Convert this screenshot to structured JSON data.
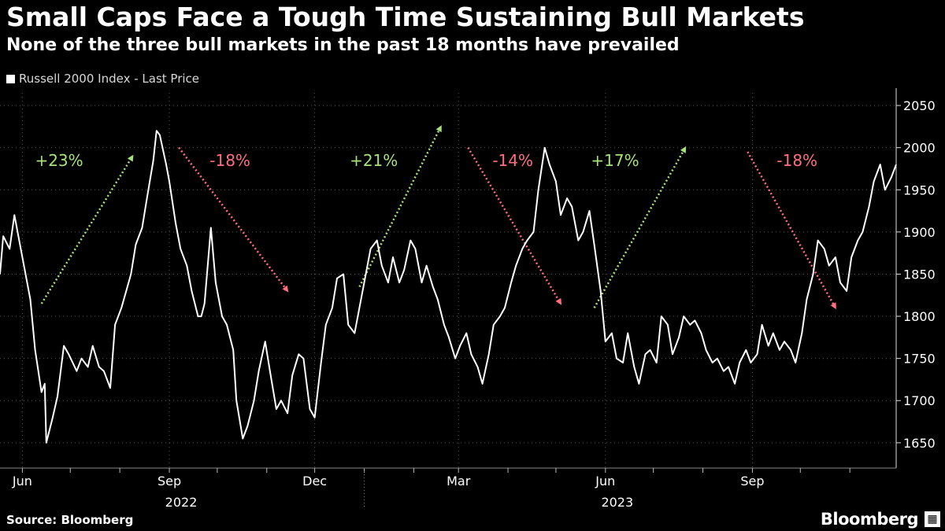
{
  "title": "Small Caps Face a Tough Time Sustaining Bull Markets",
  "subtitle": "None of the three bull markets in the past 18 months have prevailed",
  "legend_label": "Russell 2000 Index - Last Price",
  "source": "Source: Bloomberg",
  "brand": "Bloomberg",
  "brand_icon": "terminal-icon",
  "colors": {
    "background": "#000000",
    "line": "#ffffff",
    "gain": "#a6e27a",
    "loss": "#ff6f7f",
    "grid": "#555555"
  },
  "chart_data": {
    "type": "line",
    "xlabel": "",
    "ylabel": "",
    "ylim": [
      1620,
      2065
    ],
    "xlim": [
      "2022-05-18",
      "2023-11-30"
    ],
    "yticks": [
      1650,
      1700,
      1750,
      1800,
      1850,
      1900,
      1950,
      2000,
      2050
    ],
    "xticks": [
      {
        "date": "2022-06-01",
        "label": "Jun",
        "year": ""
      },
      {
        "date": "2022-09-01",
        "label": "Sep",
        "year": "2022"
      },
      {
        "date": "2022-12-01",
        "label": "Dec",
        "year": ""
      },
      {
        "date": "2023-03-01",
        "label": "Mar",
        "year": ""
      },
      {
        "date": "2023-06-01",
        "label": "Jun",
        "year": "2023"
      },
      {
        "date": "2023-09-01",
        "label": "Sep",
        "year": ""
      }
    ],
    "year_dividers": [
      "2023-01-01"
    ],
    "legend_position": "top-left",
    "grid": true,
    "series": [
      {
        "name": "Russell 2000 Index - Last Price",
        "points": [
          [
            "2022-05-18",
            1850
          ],
          [
            "2022-05-20",
            1895
          ],
          [
            "2022-05-24",
            1880
          ],
          [
            "2022-05-27",
            1920
          ],
          [
            "2022-06-01",
            1870
          ],
          [
            "2022-06-06",
            1820
          ],
          [
            "2022-06-09",
            1760
          ],
          [
            "2022-06-13",
            1710
          ],
          [
            "2022-06-15",
            1720
          ],
          [
            "2022-06-16",
            1650
          ],
          [
            "2022-06-20",
            1680
          ],
          [
            "2022-06-23",
            1705
          ],
          [
            "2022-06-27",
            1765
          ],
          [
            "2022-06-30",
            1755
          ],
          [
            "2022-07-05",
            1735
          ],
          [
            "2022-07-08",
            1750
          ],
          [
            "2022-07-12",
            1740
          ],
          [
            "2022-07-15",
            1765
          ],
          [
            "2022-07-19",
            1740
          ],
          [
            "2022-07-22",
            1735
          ],
          [
            "2022-07-26",
            1715
          ],
          [
            "2022-07-29",
            1790
          ],
          [
            "2022-08-02",
            1810
          ],
          [
            "2022-08-05",
            1830
          ],
          [
            "2022-08-08",
            1850
          ],
          [
            "2022-08-11",
            1885
          ],
          [
            "2022-08-15",
            1905
          ],
          [
            "2022-08-18",
            1940
          ],
          [
            "2022-08-22",
            1985
          ],
          [
            "2022-08-24",
            2020
          ],
          [
            "2022-08-26",
            2015
          ],
          [
            "2022-08-30",
            1980
          ],
          [
            "2022-09-01",
            1960
          ],
          [
            "2022-09-05",
            1910
          ],
          [
            "2022-09-08",
            1880
          ],
          [
            "2022-09-12",
            1860
          ],
          [
            "2022-09-15",
            1830
          ],
          [
            "2022-09-19",
            1800
          ],
          [
            "2022-09-21",
            1800
          ],
          [
            "2022-09-23",
            1815
          ],
          [
            "2022-09-27",
            1905
          ],
          [
            "2022-09-30",
            1840
          ],
          [
            "2022-10-04",
            1800
          ],
          [
            "2022-10-07",
            1790
          ],
          [
            "2022-10-11",
            1760
          ],
          [
            "2022-10-13",
            1700
          ],
          [
            "2022-10-17",
            1655
          ],
          [
            "2022-10-20",
            1670
          ],
          [
            "2022-10-24",
            1700
          ],
          [
            "2022-10-27",
            1735
          ],
          [
            "2022-10-31",
            1770
          ],
          [
            "2022-11-03",
            1735
          ],
          [
            "2022-11-07",
            1690
          ],
          [
            "2022-11-10",
            1700
          ],
          [
            "2022-11-14",
            1685
          ],
          [
            "2022-11-17",
            1730
          ],
          [
            "2022-11-21",
            1755
          ],
          [
            "2022-11-24",
            1750
          ],
          [
            "2022-11-28",
            1690
          ],
          [
            "2022-12-01",
            1680
          ],
          [
            "2022-12-05",
            1745
          ],
          [
            "2022-12-08",
            1790
          ],
          [
            "2022-12-12",
            1810
          ],
          [
            "2022-12-15",
            1845
          ],
          [
            "2022-12-19",
            1850
          ],
          [
            "2022-12-22",
            1790
          ],
          [
            "2022-12-26",
            1780
          ],
          [
            "2022-12-29",
            1810
          ],
          [
            "2023-01-02",
            1850
          ],
          [
            "2023-01-05",
            1880
          ],
          [
            "2023-01-09",
            1890
          ],
          [
            "2023-01-12",
            1860
          ],
          [
            "2023-01-16",
            1840
          ],
          [
            "2023-01-19",
            1870
          ],
          [
            "2023-01-23",
            1840
          ],
          [
            "2023-01-26",
            1855
          ],
          [
            "2023-01-30",
            1890
          ],
          [
            "2023-02-02",
            1880
          ],
          [
            "2023-02-06",
            1840
          ],
          [
            "2023-02-09",
            1860
          ],
          [
            "2023-02-13",
            1835
          ],
          [
            "2023-02-16",
            1820
          ],
          [
            "2023-02-20",
            1790
          ],
          [
            "2023-02-23",
            1775
          ],
          [
            "2023-02-27",
            1750
          ],
          [
            "2023-03-02",
            1765
          ],
          [
            "2023-03-06",
            1780
          ],
          [
            "2023-03-09",
            1755
          ],
          [
            "2023-03-13",
            1740
          ],
          [
            "2023-03-16",
            1720
          ],
          [
            "2023-03-20",
            1755
          ],
          [
            "2023-03-23",
            1790
          ],
          [
            "2023-03-27",
            1800
          ],
          [
            "2023-03-30",
            1810
          ],
          [
            "2023-04-03",
            1840
          ],
          [
            "2023-04-06",
            1860
          ],
          [
            "2023-04-10",
            1880
          ],
          [
            "2023-04-13",
            1890
          ],
          [
            "2023-04-17",
            1900
          ],
          [
            "2023-04-20",
            1950
          ],
          [
            "2023-04-24",
            2000
          ],
          [
            "2023-04-27",
            1980
          ],
          [
            "2023-05-01",
            1960
          ],
          [
            "2023-05-04",
            1920
          ],
          [
            "2023-05-08",
            1940
          ],
          [
            "2023-05-11",
            1930
          ],
          [
            "2023-05-15",
            1890
          ],
          [
            "2023-05-18",
            1900
          ],
          [
            "2023-05-22",
            1925
          ],
          [
            "2023-05-25",
            1885
          ],
          [
            "2023-05-29",
            1830
          ],
          [
            "2023-06-01",
            1770
          ],
          [
            "2023-06-05",
            1780
          ],
          [
            "2023-06-08",
            1750
          ],
          [
            "2023-06-12",
            1745
          ],
          [
            "2023-06-15",
            1780
          ],
          [
            "2023-06-19",
            1740
          ],
          [
            "2023-06-22",
            1720
          ],
          [
            "2023-06-26",
            1755
          ],
          [
            "2023-06-29",
            1760
          ],
          [
            "2023-07-03",
            1745
          ],
          [
            "2023-07-06",
            1800
          ],
          [
            "2023-07-10",
            1790
          ],
          [
            "2023-07-13",
            1755
          ],
          [
            "2023-07-17",
            1775
          ],
          [
            "2023-07-20",
            1800
          ],
          [
            "2023-07-24",
            1790
          ],
          [
            "2023-07-27",
            1795
          ],
          [
            "2023-07-31",
            1780
          ],
          [
            "2023-08-03",
            1760
          ],
          [
            "2023-08-07",
            1745
          ],
          [
            "2023-08-10",
            1750
          ],
          [
            "2023-08-14",
            1735
          ],
          [
            "2023-08-17",
            1740
          ],
          [
            "2023-08-21",
            1720
          ],
          [
            "2023-08-24",
            1745
          ],
          [
            "2023-08-28",
            1760
          ],
          [
            "2023-08-31",
            1745
          ],
          [
            "2023-09-04",
            1755
          ],
          [
            "2023-09-07",
            1790
          ],
          [
            "2023-09-11",
            1765
          ],
          [
            "2023-09-14",
            1780
          ],
          [
            "2023-09-18",
            1760
          ],
          [
            "2023-09-21",
            1770
          ],
          [
            "2023-09-25",
            1760
          ],
          [
            "2023-09-28",
            1745
          ],
          [
            "2023-10-02",
            1780
          ],
          [
            "2023-10-05",
            1820
          ],
          [
            "2023-10-09",
            1850
          ],
          [
            "2023-10-12",
            1890
          ],
          [
            "2023-10-16",
            1880
          ],
          [
            "2023-10-19",
            1860
          ],
          [
            "2023-10-23",
            1870
          ],
          [
            "2023-10-26",
            1840
          ],
          [
            "2023-10-30",
            1830
          ],
          [
            "2023-11-02",
            1870
          ],
          [
            "2023-11-06",
            1890
          ],
          [
            "2023-11-09",
            1900
          ],
          [
            "2023-11-13",
            1930
          ],
          [
            "2023-11-16",
            1960
          ],
          [
            "2023-11-20",
            1980
          ],
          [
            "2023-11-23",
            1950
          ],
          [
            "2023-11-27",
            1965
          ],
          [
            "2023-11-30",
            1980
          ]
        ]
      }
    ],
    "annotations": [
      {
        "text": "+23%",
        "kind": "gain",
        "from": [
          "2022-06-13",
          1815
        ],
        "to": [
          "2022-08-09",
          1990
        ],
        "label_at": [
          "2022-06-24",
          1985
        ]
      },
      {
        "text": "-18%",
        "kind": "loss",
        "from": [
          "2022-09-07",
          2000
        ],
        "to": [
          "2022-11-14",
          1830
        ],
        "label_at": [
          "2022-10-09",
          1985
        ]
      },
      {
        "text": "+21%",
        "kind": "gain",
        "from": [
          "2022-12-29",
          1835
        ],
        "to": [
          "2023-02-18",
          2025
        ],
        "label_at": [
          "2023-01-07",
          1985
        ]
      },
      {
        "text": "-14%",
        "kind": "loss",
        "from": [
          "2023-03-07",
          2000
        ],
        "to": [
          "2023-05-04",
          1815
        ],
        "label_at": [
          "2023-04-04",
          1985
        ]
      },
      {
        "text": "+17%",
        "kind": "gain",
        "from": [
          "2023-05-25",
          1810
        ],
        "to": [
          "2023-07-21",
          2000
        ],
        "label_at": [
          "2023-06-07",
          1985
        ]
      },
      {
        "text": "-18%",
        "kind": "loss",
        "from": [
          "2023-08-29",
          1995
        ],
        "to": [
          "2023-10-23",
          1810
        ],
        "label_at": [
          "2023-09-29",
          1985
        ]
      }
    ]
  }
}
